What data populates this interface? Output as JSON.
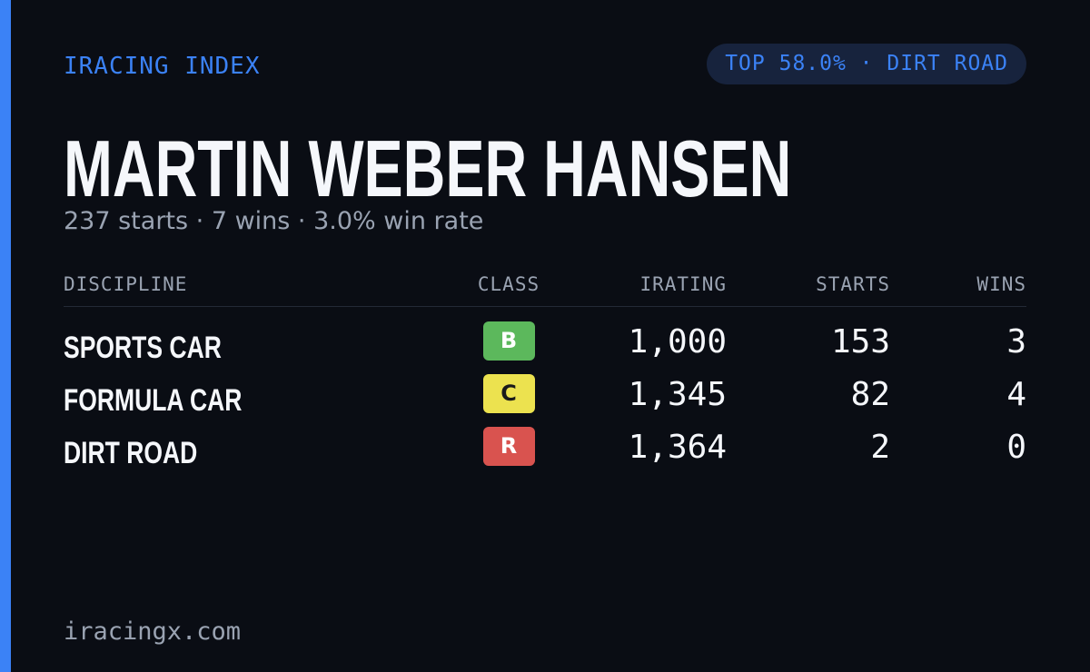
{
  "header": {
    "brand": "IRACING INDEX",
    "badge": "TOP 58.0% · DIRT ROAD"
  },
  "driver": {
    "name": "MARTIN WEBER HANSEN",
    "summary": "237 starts · 7 wins · 3.0% win rate"
  },
  "table": {
    "columns": [
      "DISCIPLINE",
      "CLASS",
      "IRATING",
      "STARTS",
      "WINS"
    ],
    "rows": [
      {
        "discipline": "SPORTS CAR",
        "class": "B",
        "class_color": "#5cb85c",
        "irating": "1,000",
        "starts": "153",
        "wins": "3"
      },
      {
        "discipline": "FORMULA CAR",
        "class": "C",
        "class_color": "#ece24f",
        "irating": "1,345",
        "starts": "82",
        "wins": "4"
      },
      {
        "discipline": "DIRT ROAD",
        "class": "R",
        "class_color": "#d9534f",
        "irating": "1,364",
        "starts": "2",
        "wins": "0"
      }
    ]
  },
  "footer": {
    "site": "iracingx.com"
  }
}
